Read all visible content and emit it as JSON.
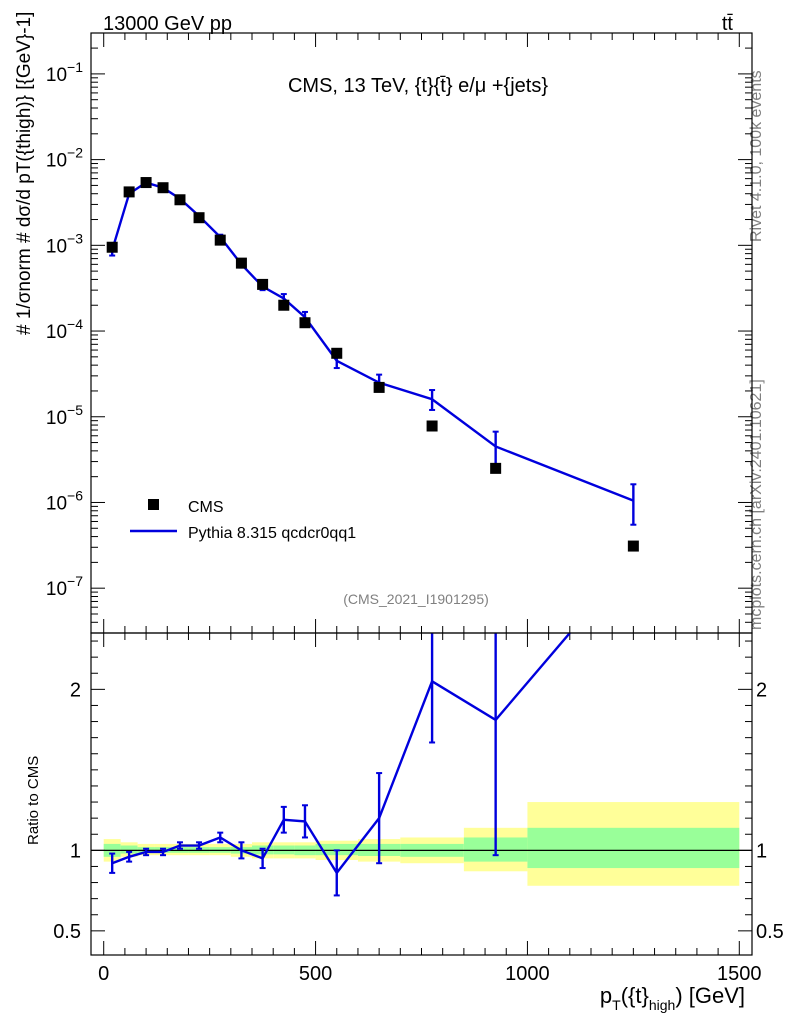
{
  "header": {
    "left": "13000 GeV pp",
    "right": "tt̄"
  },
  "side": {
    "rivet": "Rivet 4.1.0,  100k events",
    "mcplots": "mcplots.cern.ch [arXiv:2401.10621]"
  },
  "chart_data": [
    {
      "type": "scatter",
      "title": "CMS, 13 TeV, {t}{t̄} e/μ +{jets}",
      "watermark": "(CMS_2021_I1901295)",
      "ylabel": "#frac{1}{σnorm} #frac{dσ}{d pT({t}high)} [{GeV}^-1]",
      "ylabel_text": "# 1/σnorm  # dσ/d pT({thigh)}  [{GeV}-1]",
      "xlabel": "pT({t}high) [GeV]",
      "xlim": [
        -30,
        1530
      ],
      "ylim_log": [
        3e-08,
        0.3
      ],
      "y_ticks": [
        {
          "v": 1e-07,
          "label": "10",
          "exp": "−7"
        },
        {
          "v": 1e-06,
          "label": "10",
          "exp": "−6"
        },
        {
          "v": 1e-05,
          "label": "10",
          "exp": "−5"
        },
        {
          "v": 0.0001,
          "label": "10",
          "exp": "−4"
        },
        {
          "v": 0.001,
          "label": "10",
          "exp": "−3"
        },
        {
          "v": 0.01,
          "label": "10",
          "exp": "−2"
        },
        {
          "v": 0.1,
          "label": "10",
          "exp": "−1"
        }
      ],
      "legend": [
        "CMS",
        "Pythia 8.315 qcdcr0qq1"
      ],
      "series": [
        {
          "name": "CMS",
          "marker": "square",
          "color": "#000000",
          "x": [
            20,
            60,
            100,
            140,
            180,
            225,
            275,
            325,
            375,
            425,
            475,
            550,
            650,
            775,
            925,
            1250
          ],
          "y": [
            0.00095,
            0.0042,
            0.0054,
            0.0047,
            0.0034,
            0.0021,
            0.00115,
            0.00062,
            0.00035,
            0.0002,
            0.000125,
            5.5e-05,
            2.2e-05,
            7.8e-06,
            2.5e-06,
            3.1e-07
          ]
        },
        {
          "name": "Pythia 8.315 qcdcr0qq1",
          "color": "#0000dd",
          "x": [
            20,
            60,
            100,
            140,
            180,
            225,
            275,
            325,
            375,
            425,
            475,
            550,
            650,
            775,
            925,
            1250
          ],
          "y": [
            0.00088,
            0.004,
            0.0054,
            0.0047,
            0.0035,
            0.0022,
            0.00125,
            0.0006,
            0.00033,
            0.00024,
            0.000145,
            4.5e-05,
            2.5e-05,
            1.6e-05,
            4.5e-06,
            1.05e-06
          ],
          "err_lo": [
            0.00012,
            0.0002,
            0.0002,
            0.00018,
            0.00015,
            0.0001,
            8e-05,
            5e-05,
            3e-05,
            3e-05,
            2.2e-05,
            8e-06,
            5e-06,
            4e-06,
            2e-06,
            5e-07
          ],
          "err_hi": [
            0.00012,
            0.0002,
            0.0002,
            0.00018,
            0.00015,
            0.0001,
            8e-05,
            5e-05,
            3e-05,
            3e-05,
            2.2e-05,
            8e-06,
            6e-06,
            4.5e-06,
            2.2e-06,
            5.8e-07
          ]
        }
      ]
    },
    {
      "type": "line",
      "ylabel": "Ratio to CMS",
      "xlabel": "pT({t}high) [GeV]",
      "xlim": [
        -30,
        1530
      ],
      "ylim": [
        0.35,
        2.35
      ],
      "x_ticks": [
        0,
        500,
        1000,
        1500
      ],
      "y_ticks": [
        0.5,
        1,
        2
      ],
      "bands": [
        {
          "x0": 0,
          "x1": 40,
          "y_lo": 0.93,
          "y_hi": 1.07,
          "g_lo": 0.96,
          "g_hi": 1.04
        },
        {
          "x0": 40,
          "x1": 80,
          "y_lo": 0.96,
          "y_hi": 1.05,
          "g_lo": 0.98,
          "g_hi": 1.03
        },
        {
          "x0": 80,
          "x1": 120,
          "y_lo": 0.97,
          "y_hi": 1.04,
          "g_lo": 0.985,
          "g_hi": 1.02
        },
        {
          "x0": 120,
          "x1": 160,
          "y_lo": 0.97,
          "y_hi": 1.04,
          "g_lo": 0.985,
          "g_hi": 1.02
        },
        {
          "x0": 160,
          "x1": 200,
          "y_lo": 0.97,
          "y_hi": 1.04,
          "g_lo": 0.985,
          "g_hi": 1.02
        },
        {
          "x0": 200,
          "x1": 250,
          "y_lo": 0.97,
          "y_hi": 1.04,
          "g_lo": 0.985,
          "g_hi": 1.02
        },
        {
          "x0": 250,
          "x1": 300,
          "y_lo": 0.97,
          "y_hi": 1.04,
          "g_lo": 0.985,
          "g_hi": 1.02
        },
        {
          "x0": 300,
          "x1": 350,
          "y_lo": 0.96,
          "y_hi": 1.04,
          "g_lo": 0.98,
          "g_hi": 1.02
        },
        {
          "x0": 350,
          "x1": 400,
          "y_lo": 0.95,
          "y_hi": 1.05,
          "g_lo": 0.975,
          "g_hi": 1.03
        },
        {
          "x0": 400,
          "x1": 450,
          "y_lo": 0.95,
          "y_hi": 1.05,
          "g_lo": 0.975,
          "g_hi": 1.03
        },
        {
          "x0": 450,
          "x1": 500,
          "y_lo": 0.95,
          "y_hi": 1.05,
          "g_lo": 0.97,
          "g_hi": 1.03
        },
        {
          "x0": 500,
          "x1": 600,
          "y_lo": 0.94,
          "y_hi": 1.06,
          "g_lo": 0.97,
          "g_hi": 1.04
        },
        {
          "x0": 600,
          "x1": 700,
          "y_lo": 0.93,
          "y_hi": 1.07,
          "g_lo": 0.965,
          "g_hi": 1.04
        },
        {
          "x0": 700,
          "x1": 850,
          "y_lo": 0.92,
          "y_hi": 1.08,
          "g_lo": 0.96,
          "g_hi": 1.04
        },
        {
          "x0": 850,
          "x1": 1000,
          "y_lo": 0.87,
          "y_hi": 1.14,
          "g_lo": 0.93,
          "g_hi": 1.08
        },
        {
          "x0": 1000,
          "x1": 1500,
          "y_lo": 0.78,
          "y_hi": 1.3,
          "g_lo": 0.89,
          "g_hi": 1.14
        }
      ],
      "series": [
        {
          "name": "Pythia 8.315 qcdcr0qq1",
          "color": "#0000dd",
          "x": [
            20,
            60,
            100,
            140,
            180,
            225,
            275,
            325,
            375,
            425,
            475,
            550,
            650,
            775,
            925,
            1100
          ],
          "y": [
            0.92,
            0.96,
            0.99,
            0.99,
            1.03,
            1.03,
            1.08,
            1.0,
            0.95,
            1.19,
            1.18,
            0.86,
            1.2,
            2.05,
            1.81,
            2.35
          ],
          "err_lo": [
            0.06,
            0.03,
            0.02,
            0.02,
            0.02,
            0.02,
            0.03,
            0.05,
            0.06,
            0.08,
            0.1,
            0.14,
            0.28,
            0.38,
            0.84,
            0
          ],
          "err_hi": [
            0.06,
            0.03,
            0.02,
            0.02,
            0.02,
            0.02,
            0.03,
            0.05,
            0.06,
            0.08,
            0.1,
            0.14,
            0.28,
            0.38,
            0.84,
            0
          ]
        }
      ]
    }
  ]
}
